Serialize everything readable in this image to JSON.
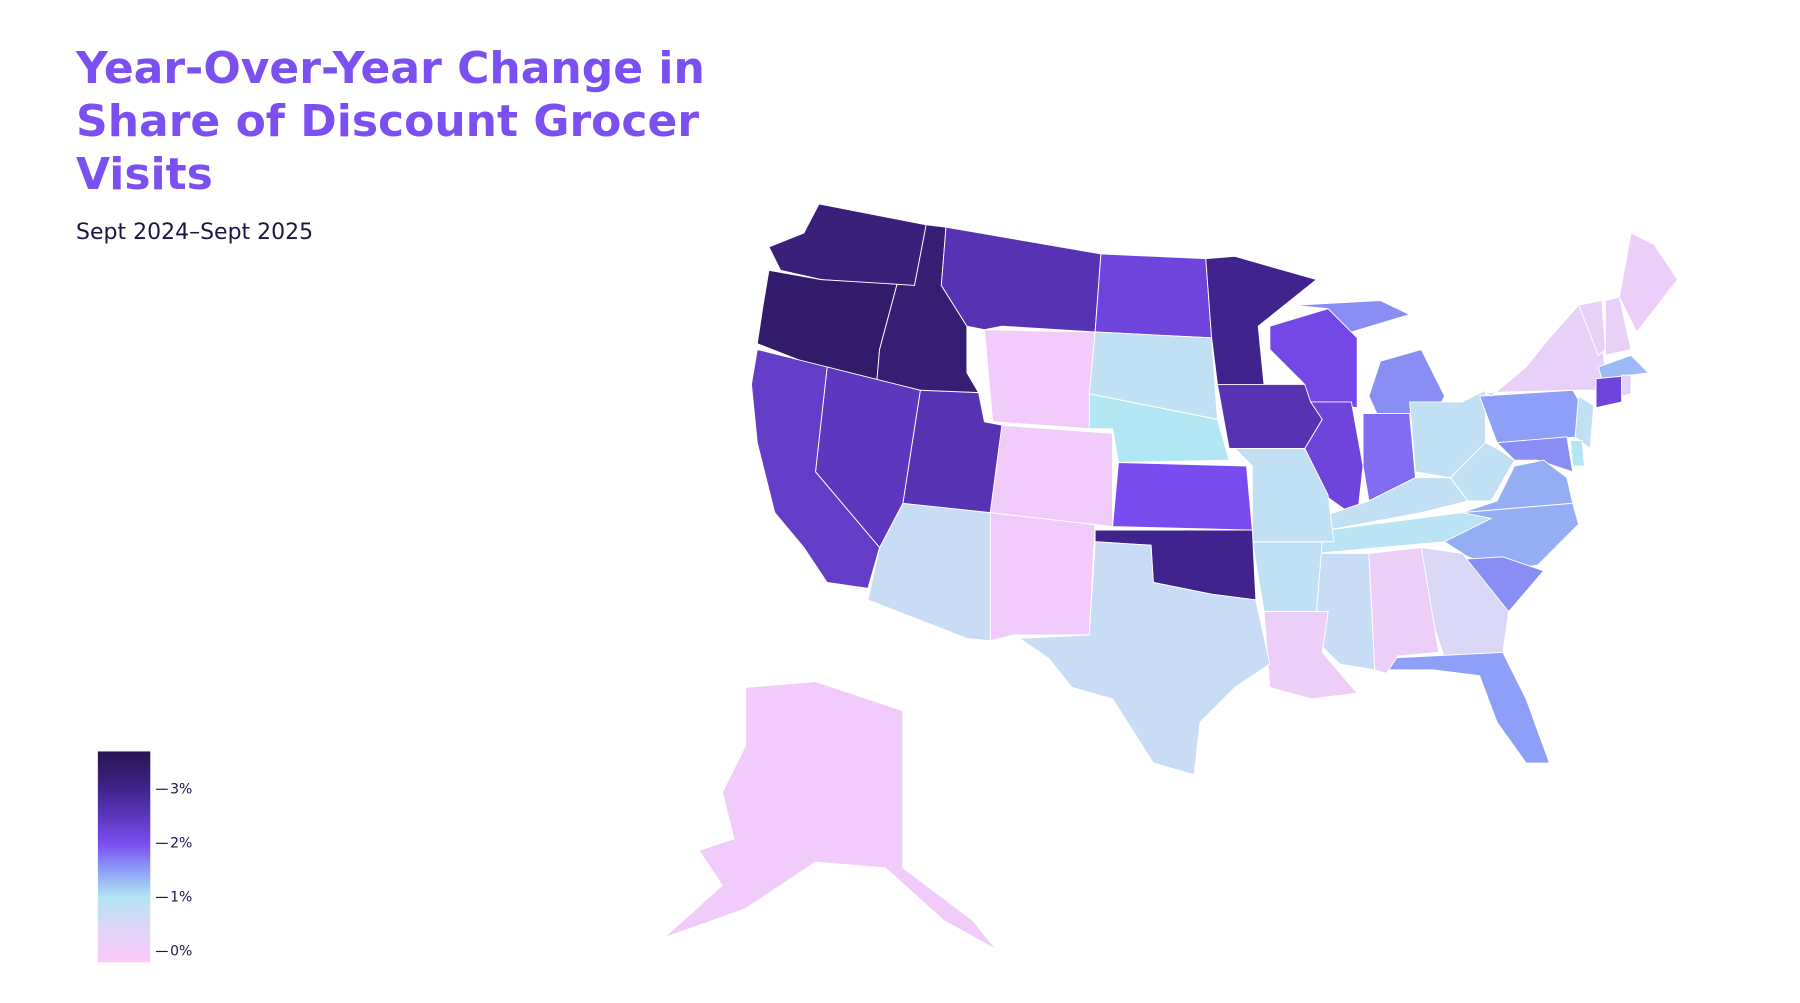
{
  "chart_data": {
    "type": "choropleth",
    "title": "Year-Over-Year Change in Share of Discount Grocer Visits",
    "subtitle": "Sept 2024–Sept 2025",
    "values": {
      "WA": 3.2,
      "OR": 3.4,
      "ID": 3.3,
      "MT": 2.6,
      "WY": 0.0,
      "ND": 2.2,
      "SD": 0.8,
      "NE": 1.0,
      "MN": 3.0,
      "IA": 2.6,
      "WI": 2.1,
      "IL": 2.2,
      "MI": 1.6,
      "IN": 1.8,
      "OH": 0.8,
      "KY": 0.8,
      "WV": 0.8,
      "PA": 1.5,
      "NY": 0.2,
      "VT": 0.2,
      "NH": 0.2,
      "ME": 0.1,
      "MA": 1.3,
      "CT": 2.2,
      "RI": 0.3,
      "NJ": 0.8,
      "DE": 1.0,
      "MD": 1.6,
      "VA": 1.4,
      "NC": 1.4,
      "SC": 1.6,
      "GA": 0.5,
      "FL": 1.5,
      "AL": 0.1,
      "MS": 0.7,
      "TN": 0.9,
      "AR": 0.8,
      "LA": 0.1,
      "MO": 0.8,
      "KS": 2.0,
      "OK": 3.0,
      "TX": 0.7,
      "NM": 0.0,
      "CO": 0.0,
      "AZ": 0.7,
      "UT": 2.6,
      "NV": 2.5,
      "CA": 2.4,
      "AK": 0.0
    },
    "color_stops": [
      {
        "value": -0.2,
        "color": "#fbc8fb"
      },
      {
        "value": 0.5,
        "color": "#d9d6f6"
      },
      {
        "value": 1,
        "color": "#b2e6f3"
      },
      {
        "value": 1.5,
        "color": "#8d9ff6"
      },
      {
        "value": 2,
        "color": "#7a4cf0"
      },
      {
        "value": 3,
        "color": "#40238c"
      },
      {
        "value": 3.7,
        "color": "#2a1552"
      }
    ],
    "legend_lim": [
      -0.2,
      3.7
    ],
    "legend_ticks": [
      {
        "value": 3,
        "label": "3%"
      },
      {
        "value": 2,
        "label": "2%"
      },
      {
        "value": 1,
        "label": "1%"
      },
      {
        "value": 0,
        "label": "0%"
      }
    ]
  }
}
